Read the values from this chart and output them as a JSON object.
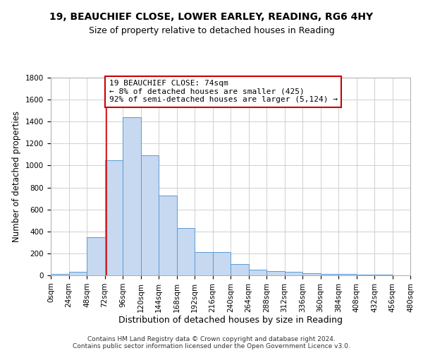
{
  "title1": "19, BEAUCHIEF CLOSE, LOWER EARLEY, READING, RG6 4HY",
  "title2": "Size of property relative to detached houses in Reading",
  "xlabel": "Distribution of detached houses by size in Reading",
  "ylabel": "Number of detached properties",
  "footer1": "Contains HM Land Registry data © Crown copyright and database right 2024.",
  "footer2": "Contains public sector information licensed under the Open Government Licence v3.0.",
  "bar_edges": [
    0,
    24,
    48,
    72,
    96,
    120,
    144,
    168,
    192,
    216,
    240,
    264,
    288,
    312,
    336,
    360,
    384,
    408,
    432,
    456,
    480
  ],
  "bar_heights": [
    10,
    35,
    350,
    1050,
    1440,
    1090,
    725,
    430,
    215,
    215,
    100,
    50,
    40,
    30,
    20,
    15,
    10,
    5,
    5,
    3,
    2
  ],
  "bar_color": "#c6d9f0",
  "bar_edge_color": "#5b9bd5",
  "grid_color": "#d0d0d0",
  "annotation_box_color": "#cc0000",
  "property_line_x": 74,
  "annotation_line1": "19 BEAUCHIEF CLOSE: 74sqm",
  "annotation_line2": "← 8% of detached houses are smaller (425)",
  "annotation_line3": "92% of semi-detached houses are larger (5,124) →",
  "ylim": [
    0,
    1800
  ],
  "yticks": [
    0,
    200,
    400,
    600,
    800,
    1000,
    1200,
    1400,
    1600,
    1800
  ],
  "xtick_labels": [
    "0sqm",
    "24sqm",
    "48sqm",
    "72sqm",
    "96sqm",
    "120sqm",
    "144sqm",
    "168sqm",
    "192sqm",
    "216sqm",
    "240sqm",
    "264sqm",
    "288sqm",
    "312sqm",
    "336sqm",
    "360sqm",
    "384sqm",
    "408sqm",
    "432sqm",
    "456sqm",
    "480sqm"
  ],
  "title1_fontsize": 10,
  "title2_fontsize": 9,
  "xlabel_fontsize": 9,
  "ylabel_fontsize": 8.5,
  "tick_fontsize": 7.5,
  "annotation_fontsize": 8,
  "footer_fontsize": 6.5
}
